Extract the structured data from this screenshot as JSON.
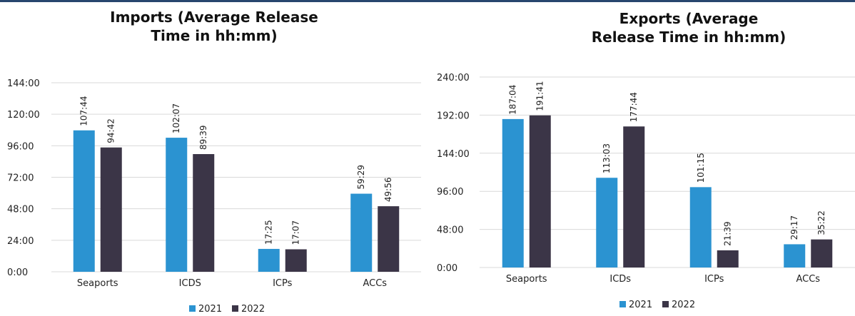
{
  "chart_data": [
    {
      "type": "bar",
      "title": "Imports (Average Release\nTime in hh:mm)",
      "categories": [
        "Seaports",
        "ICDS",
        "ICPs",
        "ACCs"
      ],
      "series": [
        {
          "name": "2021",
          "values": [
            107.73,
            102.12,
            17.42,
            59.48
          ],
          "labels": [
            "107:44",
            "102:07",
            "17:25",
            "59:29"
          ]
        },
        {
          "name": "2022",
          "values": [
            94.7,
            89.65,
            17.12,
            49.93
          ],
          "labels": [
            "94:42",
            "89:39",
            "17:07",
            "49:56"
          ]
        }
      ],
      "ylim": [
        0,
        144
      ],
      "yticks": [
        0,
        24,
        48,
        72,
        96,
        120,
        144
      ],
      "ytick_labels": [
        "0:00",
        "24:00",
        "48:00",
        "72:00",
        "96:00",
        "120:00",
        "144:00"
      ],
      "grid": true,
      "legend": "bottom"
    },
    {
      "type": "bar",
      "title": "Exports (Average\nRelease Time in hh:mm)",
      "categories": [
        "Seaports",
        "ICDs",
        "ICPs",
        "ACCs"
      ],
      "series": [
        {
          "name": "2021",
          "values": [
            187.07,
            113.05,
            101.25,
            29.28
          ],
          "labels": [
            "187:04",
            "113:03",
            "101:15",
            "29:17"
          ]
        },
        {
          "name": "2022",
          "values": [
            191.68,
            177.73,
            21.65,
            35.37
          ],
          "labels": [
            "191:41",
            "177:44",
            "21:39",
            "35:22"
          ]
        }
      ],
      "ylim": [
        0,
        240
      ],
      "yticks": [
        0,
        48,
        96,
        144,
        192,
        240
      ],
      "ytick_labels": [
        "0:00",
        "48:00",
        "96:00",
        "144:00",
        "192:00",
        "240:00"
      ],
      "grid": true,
      "legend": "bottom"
    }
  ],
  "colors": {
    "s2021": "#2b93d1",
    "s2022": "#3b3547",
    "grid": "#d9d9d9",
    "text": "#222222"
  }
}
